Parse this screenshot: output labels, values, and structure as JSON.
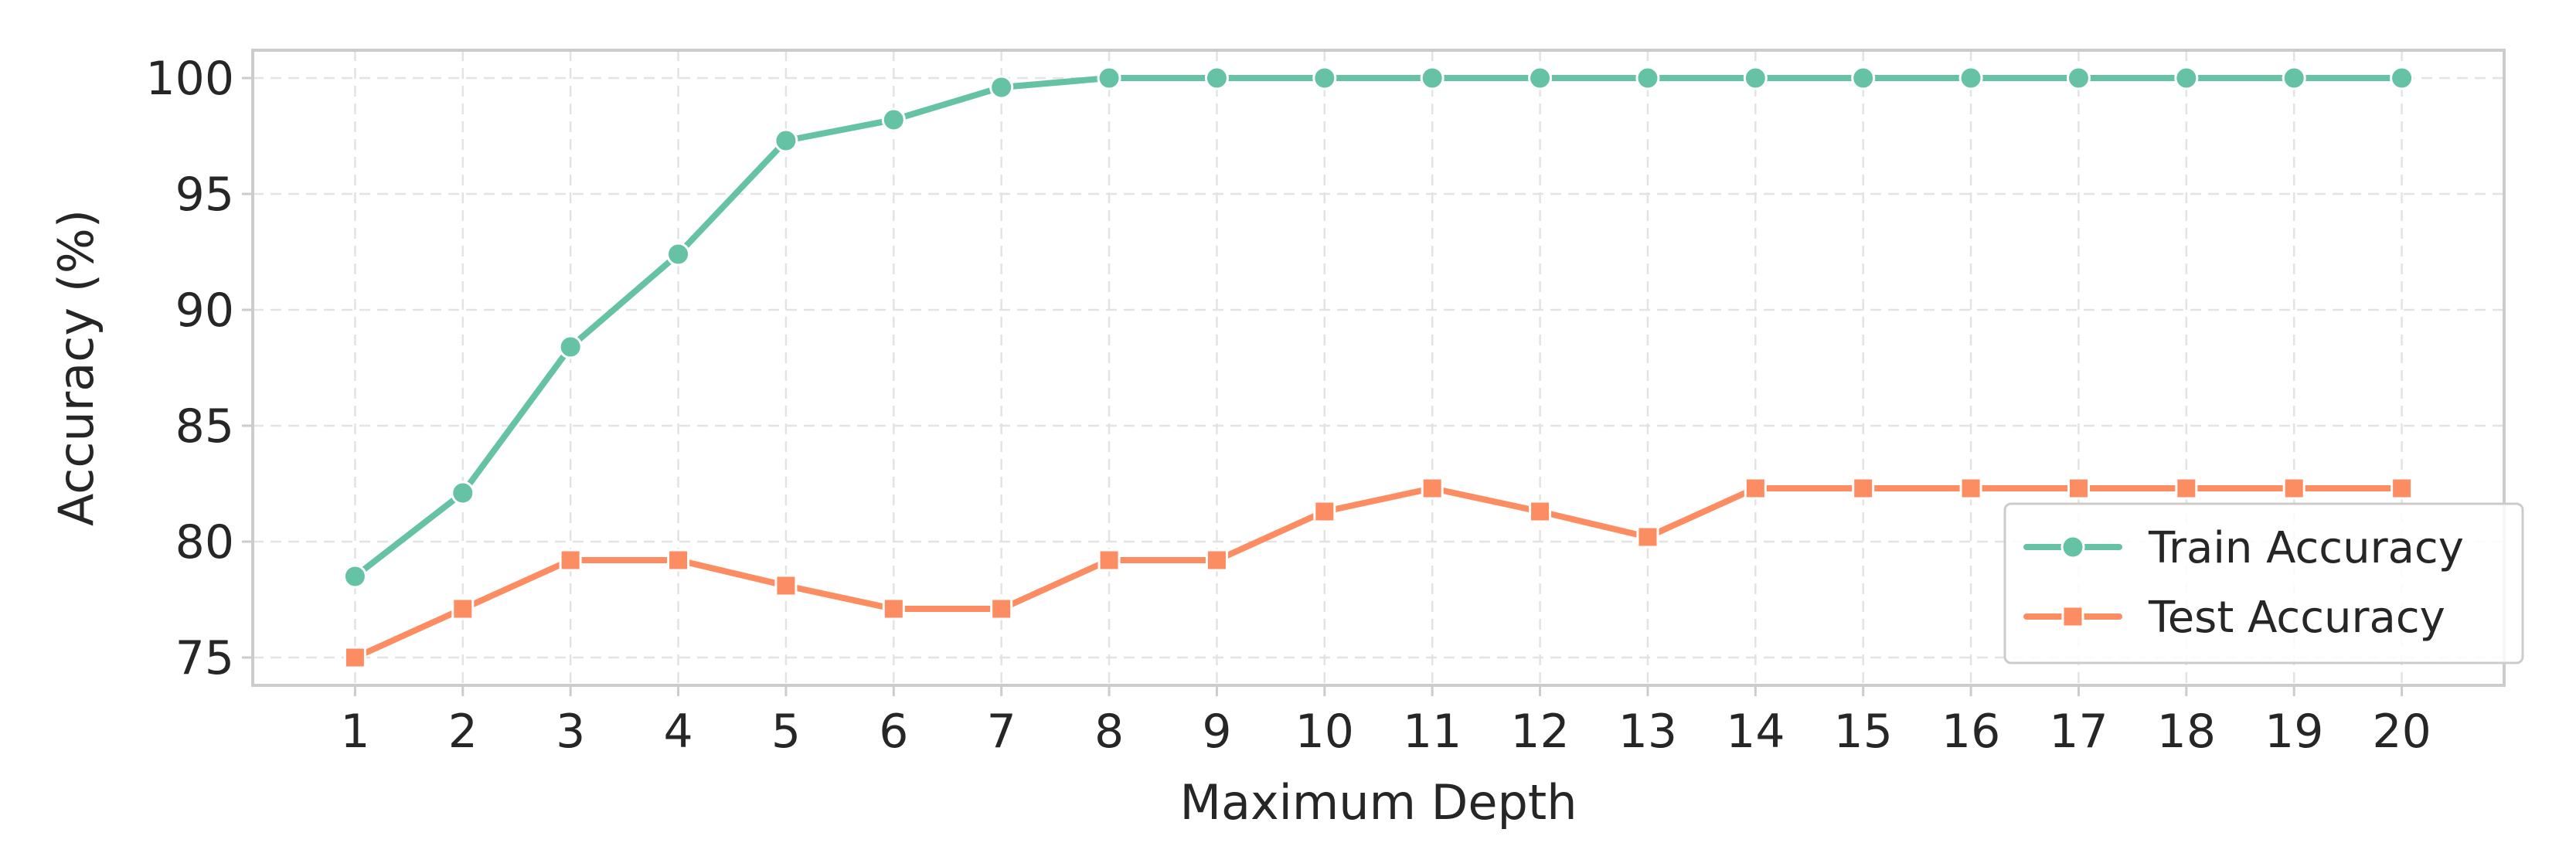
{
  "chart_data": {
    "type": "line",
    "xlabel": "Maximum Depth",
    "ylabel": "Accuracy (%)",
    "x": [
      1,
      2,
      3,
      4,
      5,
      6,
      7,
      8,
      9,
      10,
      11,
      12,
      13,
      14,
      15,
      16,
      17,
      18,
      19,
      20
    ],
    "xlim": [
      0.05,
      20.95
    ],
    "ylim": [
      73.8,
      101.2
    ],
    "yticks": [
      75,
      80,
      85,
      90,
      95,
      100
    ],
    "grid": true,
    "legend_position": "bottom-right",
    "series": [
      {
        "name": "Train Accuracy",
        "marker": "circle",
        "color": "#66c2a5",
        "values": [
          78.5,
          82.1,
          88.4,
          92.4,
          97.3,
          98.2,
          99.6,
          100,
          100,
          100,
          100,
          100,
          100,
          100,
          100,
          100,
          100,
          100,
          100,
          100
        ]
      },
      {
        "name": "Test Accuracy",
        "marker": "square",
        "color": "#fc8d62",
        "values": [
          75.0,
          77.1,
          79.2,
          79.2,
          78.1,
          77.1,
          77.1,
          79.2,
          79.2,
          81.3,
          82.3,
          81.3,
          80.2,
          82.3,
          82.3,
          82.3,
          82.3,
          82.3,
          82.3,
          82.3
        ]
      }
    ]
  }
}
